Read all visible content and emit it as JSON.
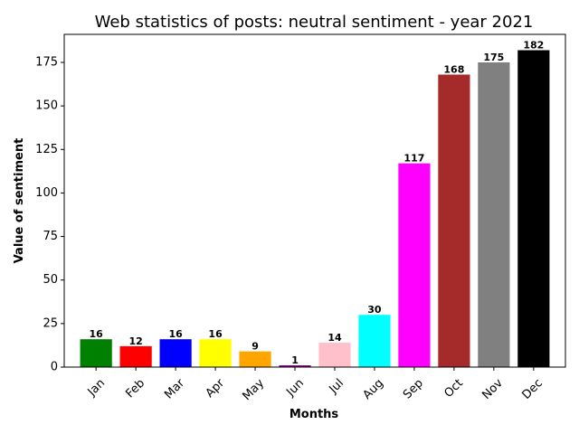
{
  "chart_data": {
    "type": "bar",
    "title": "Web statistics of posts: neutral sentiment - year 2021",
    "xlabel": "Months",
    "ylabel": "Value of sentiment",
    "categories": [
      "Jan",
      "Feb",
      "Mar",
      "Apr",
      "May",
      "Jun",
      "Jul",
      "Aug",
      "Sep",
      "Oct",
      "Nov",
      "Dec"
    ],
    "values": [
      16,
      12,
      16,
      16,
      9,
      1,
      14,
      30,
      117,
      168,
      175,
      182
    ],
    "colors": [
      "#008000",
      "#ff0000",
      "#0000ff",
      "#ffff00",
      "#ffa500",
      "#800080",
      "#ffc0cb",
      "#00ffff",
      "#ff00ff",
      "#a52a2a",
      "#808080",
      "#000000"
    ],
    "ylim": [
      0,
      191.1
    ],
    "yticks": [
      0,
      25,
      50,
      75,
      100,
      125,
      150,
      175
    ],
    "xtick_rotation": 45,
    "grid": false,
    "data_labels": true
  }
}
